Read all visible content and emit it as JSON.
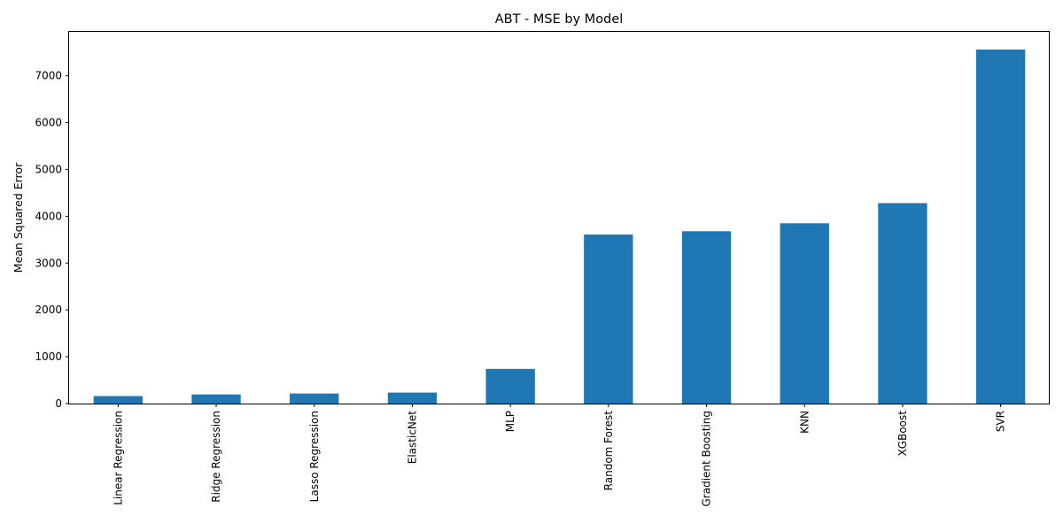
{
  "chart_data": {
    "type": "bar",
    "title": "ABT - MSE by Model",
    "xlabel": "",
    "ylabel": "Mean Squared Error",
    "categories": [
      "Linear Regression",
      "Ridge Regression",
      "Lasso Regression",
      "ElasticNet",
      "MLP",
      "Random Forest",
      "Gradient Boosting",
      "KNN",
      "XGBoost",
      "SVR"
    ],
    "values": [
      160,
      195,
      215,
      235,
      740,
      3610,
      3680,
      3850,
      4280,
      7560
    ],
    "ylim": [
      0,
      7938
    ],
    "yticks": [
      0,
      1000,
      2000,
      3000,
      4000,
      5000,
      6000,
      7000
    ],
    "ytick_labels": [
      "0",
      "1000",
      "2000",
      "3000",
      "4000",
      "5000",
      "6000",
      "7000"
    ],
    "bar_color": "#1f77b4",
    "grid": false,
    "legend": "none"
  }
}
